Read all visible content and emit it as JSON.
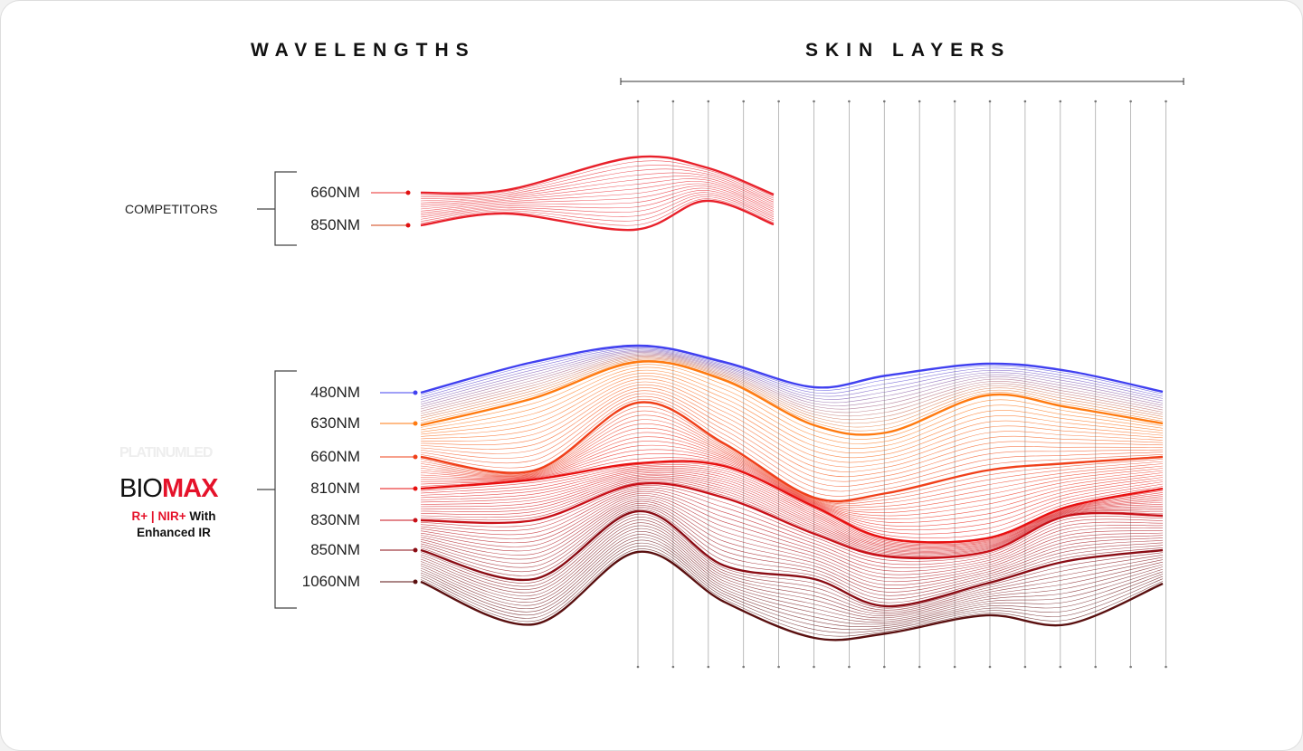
{
  "headers": {
    "wavelengths": "WAVELENGTHS",
    "skin_layers": "SKIN LAYERS"
  },
  "competitors": {
    "label": "COMPETITORS",
    "wavelengths": [
      {
        "label": "660NM",
        "color": "#e8333a"
      },
      {
        "label": "850NM",
        "color": "#d9432a"
      }
    ]
  },
  "biomax": {
    "logo_text": "PLATINUMLED",
    "brand_prefix": "BIO",
    "brand_suffix": "MAX",
    "tag_red": "R+ | NIR+",
    "tag_black": " With",
    "tag_line2": "Enhanced IR",
    "wavelengths": [
      {
        "label": "480NM",
        "color": "#4040f0"
      },
      {
        "label": "630NM",
        "color": "#ff7a10"
      },
      {
        "label": "660NM",
        "color": "#f0401a"
      },
      {
        "label": "810NM",
        "color": "#e81010"
      },
      {
        "label": "830NM",
        "color": "#c81018"
      },
      {
        "label": "850NM",
        "color": "#8a0c14"
      },
      {
        "label": "1060NM",
        "color": "#5a1010"
      }
    ]
  },
  "skin_layer_count": 16,
  "accent_red": "#e5122a"
}
